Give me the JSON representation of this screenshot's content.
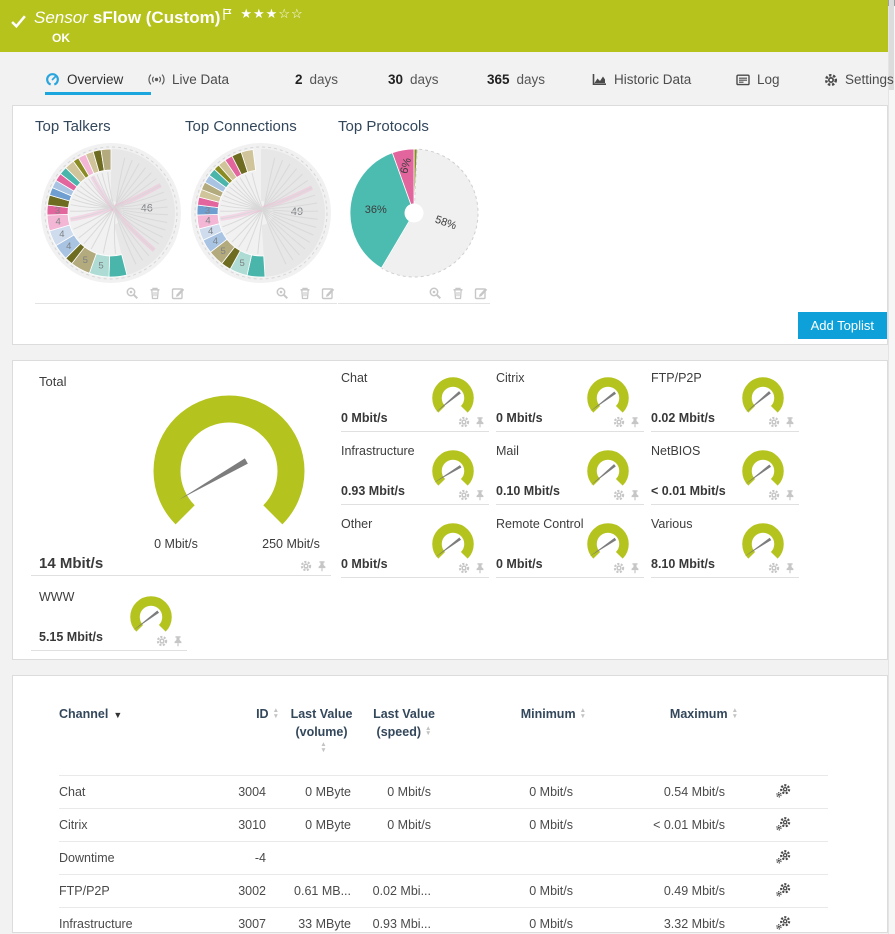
{
  "header": {
    "title_prefix": "Sensor",
    "title_name": "sFlow (Custom)",
    "stars": "★★★☆☆",
    "status": "OK",
    "bar_color": "#b6c31c"
  },
  "tabs": {
    "overview": "Overview",
    "live_data": "Live Data",
    "d2_num": "2",
    "d2": "days",
    "d30_num": "30",
    "d30": "days",
    "d365_num": "365",
    "d365": "days",
    "historic": "Historic Data",
    "log": "Log",
    "settings": "Settings"
  },
  "toplists": {
    "add_button": "Add Toplist",
    "charts": [
      {
        "title": "Top Talkers",
        "type": "chord",
        "segments": [
          {
            "v": 46,
            "c": "#e7e7e8",
            "label": "46",
            "big": true
          },
          {
            "v": 4.5,
            "c": "#4ab5aa"
          },
          {
            "v": 5,
            "c": "#aedcd5",
            "label": "5"
          },
          {
            "v": 5,
            "c": "#b3aa7d",
            "label": "5"
          },
          {
            "v": 2,
            "c": "#6e6c21"
          },
          {
            "v": 4,
            "c": "#a9c4e3",
            "label": "4"
          },
          {
            "v": 4,
            "c": "#cfdcee",
            "label": "4"
          },
          {
            "v": 4,
            "c": "#f3b6d4",
            "label": "4"
          },
          {
            "v": 2.5,
            "c": "#e2659d",
            "label": "3"
          },
          {
            "v": 2.5,
            "c": "#6e6c21"
          },
          {
            "v": 2,
            "c": "#6f9fd0"
          },
          {
            "v": 2,
            "c": "#a9c4e3"
          },
          {
            "v": 2,
            "c": "#e2659d"
          },
          {
            "v": 2,
            "c": "#4ab5aa"
          },
          {
            "v": 2.5,
            "c": "#cfc49a"
          },
          {
            "v": 1.5,
            "c": "#8a8b22"
          },
          {
            "v": 2,
            "c": "#f3b6d4"
          },
          {
            "v": 2,
            "c": "#cfc49a"
          },
          {
            "v": 2,
            "c": "#6e6c21"
          },
          {
            "v": 2.5,
            "c": "#b3aa7d"
          }
        ]
      },
      {
        "title": "Top Connections",
        "type": "chord",
        "segments": [
          {
            "v": 49,
            "c": "#e7e7e8",
            "label": "49",
            "big": true
          },
          {
            "v": 4.5,
            "c": "#4ab5aa"
          },
          {
            "v": 4.5,
            "c": "#aedcd5",
            "label": "5"
          },
          {
            "v": 2.5,
            "c": "#6e6c21"
          },
          {
            "v": 4,
            "c": "#b3aa7d",
            "label": "5"
          },
          {
            "v": 3.5,
            "c": "#a9c4e3",
            "label": "4"
          },
          {
            "v": 3,
            "c": "#cfdcee",
            "label": "4"
          },
          {
            "v": 3.5,
            "c": "#f3b6d4",
            "label": "4"
          },
          {
            "v": 2.5,
            "c": "#6f9fd0",
            "label": "3"
          },
          {
            "v": 2,
            "c": "#e2659d"
          },
          {
            "v": 2,
            "c": "#cfc49a"
          },
          {
            "v": 2,
            "c": "#b3aa7d"
          },
          {
            "v": 2,
            "c": "#a9c4e3"
          },
          {
            "v": 2,
            "c": "#4ab5aa"
          },
          {
            "v": 1.5,
            "c": "#8a8b22"
          },
          {
            "v": 2,
            "c": "#cfc49a"
          },
          {
            "v": 2,
            "c": "#e2659d"
          },
          {
            "v": 2.5,
            "c": "#6e6c21"
          },
          {
            "v": 3,
            "c": "#cfc49a"
          }
        ]
      },
      {
        "title": "Top Protocols",
        "type": "pie",
        "segments": [
          {
            "v": 0.8,
            "c": "#8a8b22"
          },
          {
            "v": 57.7,
            "c": "#f0f0f1",
            "label": "58%",
            "rot": 20,
            "lr": 0.52,
            "dash": true
          },
          {
            "v": 36,
            "c": "#4cbcb1",
            "label": "36%",
            "rot": 0,
            "lr": 0.6
          },
          {
            "v": 5.5,
            "c": "#e2659d",
            "label": "6%",
            "rot": -75,
            "lr": 0.75
          }
        ]
      }
    ]
  },
  "gauges": {
    "accent_color": "#b4c31d",
    "total": {
      "label": "Total",
      "value": "14 Mbit/s",
      "min_label": "0 Mbit/s",
      "max_label": "250 Mbit/s",
      "frac": 0.056
    },
    "channels": [
      {
        "label": "Chat",
        "value": "0 Mbit/s",
        "frac": 0.02
      },
      {
        "label": "Citrix",
        "value": "0 Mbit/s",
        "frac": 0.03
      },
      {
        "label": "FTP/P2P",
        "value": "0.02 Mbit/s",
        "frac": 0.02
      },
      {
        "label": "Infrastructure",
        "value": "0.93 Mbit/s",
        "frac": 0.05
      },
      {
        "label": "Mail",
        "value": "0.10 Mbit/s",
        "frac": 0.02
      },
      {
        "label": "NetBIOS",
        "value": "< 0.01 Mbit/s",
        "frac": 0.03
      },
      {
        "label": "Other",
        "value": "0 Mbit/s",
        "frac": 0.03
      },
      {
        "label": "Remote Control",
        "value": "0 Mbit/s",
        "frac": 0.04
      },
      {
        "label": "Various",
        "value": "8.10 Mbit/s",
        "frac": 0.04
      },
      {
        "label": "WWW",
        "value": "5.15 Mbit/s",
        "frac": 0.03
      }
    ]
  },
  "table": {
    "columns": {
      "channel": "Channel",
      "id": "ID",
      "vol1": "Last Value",
      "vol2": "(volume)",
      "spd1": "Last Value",
      "spd2": "(speed)",
      "min": "Minimum",
      "max": "Maximum"
    },
    "rows": [
      {
        "name": "Chat",
        "id": "3004",
        "vol": "0 MByte",
        "spd": "0 Mbit/s",
        "min": "0 Mbit/s",
        "max": "0.54 Mbit/s"
      },
      {
        "name": "Citrix",
        "id": "3010",
        "vol": "0 MByte",
        "spd": "0 Mbit/s",
        "min": "0 Mbit/s",
        "max": "< 0.01 Mbit/s"
      },
      {
        "name": "Downtime",
        "id": "-4",
        "vol": "",
        "spd": "",
        "min": "",
        "max": ""
      },
      {
        "name": "FTP/P2P",
        "id": "3002",
        "vol": "0.61 MB...",
        "spd": "0.02 Mbi...",
        "min": "0 Mbit/s",
        "max": "0.49 Mbit/s"
      },
      {
        "name": "Infrastructure",
        "id": "3007",
        "vol": "33 MByte",
        "spd": "0.93 Mbi...",
        "min": "0 Mbit/s",
        "max": "3.32 Mbit/s"
      }
    ]
  }
}
